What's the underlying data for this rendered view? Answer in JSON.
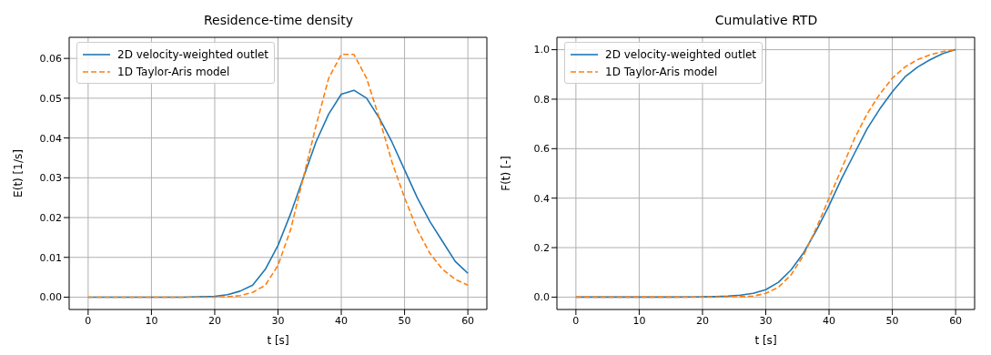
{
  "chart_data": [
    {
      "type": "line",
      "title": "Residence-time density",
      "xlabel": "t [s]",
      "ylabel": "E(t) [1/s]",
      "x": [
        0,
        5,
        10,
        15,
        20,
        22,
        24,
        26,
        28,
        30,
        32,
        34,
        36,
        38,
        40,
        42,
        44,
        46,
        48,
        50,
        52,
        54,
        56,
        58,
        60
      ],
      "series": [
        {
          "name": "2D velocity-weighted outlet",
          "color": "#1f77b4",
          "line_style": "solid",
          "values": [
            0,
            0,
            0,
            0,
            0.0002,
            0.0006,
            0.0015,
            0.003,
            0.007,
            0.013,
            0.021,
            0.03,
            0.039,
            0.046,
            0.051,
            0.052,
            0.05,
            0.045,
            0.039,
            0.032,
            0.025,
            0.019,
            0.014,
            0.009,
            0.006
          ]
        },
        {
          "name": "1D Taylor-Aris model",
          "color": "#ff7f0e",
          "line_style": "dashed",
          "values": [
            0,
            0,
            0,
            0,
            0,
            0.0001,
            0.0004,
            0.0012,
            0.003,
            0.008,
            0.017,
            0.03,
            0.043,
            0.055,
            0.061,
            0.061,
            0.055,
            0.045,
            0.034,
            0.025,
            0.017,
            0.011,
            0.007,
            0.0045,
            0.003
          ]
        }
      ],
      "xlim": [
        -3,
        63
      ],
      "xticks": [
        0,
        10,
        20,
        30,
        40,
        50,
        60
      ],
      "ylim": [
        -0.0031,
        0.0653
      ],
      "yticks": [
        {
          "value": 0,
          "label": "0.00"
        },
        {
          "value": 0.01,
          "label": "0.01"
        },
        {
          "value": 0.02,
          "label": "0.02"
        },
        {
          "value": 0.03,
          "label": "0.03"
        },
        {
          "value": 0.04,
          "label": "0.04"
        },
        {
          "value": 0.05,
          "label": "0.05"
        },
        {
          "value": 0.06,
          "label": "0.06"
        }
      ],
      "grid": true,
      "legend": "top left"
    },
    {
      "type": "line",
      "title": "Cumulative RTD",
      "xlabel": "t [s]",
      "ylabel": "F(t) [-]",
      "x": [
        0,
        5,
        10,
        15,
        20,
        22,
        24,
        26,
        28,
        30,
        32,
        34,
        36,
        38,
        40,
        42,
        44,
        46,
        48,
        50,
        52,
        54,
        56,
        58,
        60
      ],
      "series": [
        {
          "name": "2D velocity-weighted outlet",
          "color": "#1f77b4",
          "line_style": "solid",
          "values": [
            0,
            0,
            0,
            0,
            0.001,
            0.002,
            0.004,
            0.008,
            0.015,
            0.03,
            0.06,
            0.11,
            0.18,
            0.27,
            0.37,
            0.48,
            0.58,
            0.68,
            0.76,
            0.83,
            0.89,
            0.93,
            0.96,
            0.985,
            1.0
          ]
        },
        {
          "name": "1D Taylor-Aris model",
          "color": "#ff7f0e",
          "line_style": "dashed",
          "values": [
            0,
            0,
            0,
            0,
            0,
            0,
            0.001,
            0.002,
            0.004,
            0.015,
            0.04,
            0.09,
            0.17,
            0.28,
            0.4,
            0.52,
            0.64,
            0.74,
            0.82,
            0.885,
            0.93,
            0.96,
            0.98,
            0.993,
            1.0
          ]
        }
      ],
      "xlim": [
        -3,
        63
      ],
      "xticks": [
        0,
        10,
        20,
        30,
        40,
        50,
        60
      ],
      "ylim": [
        -0.05,
        1.05
      ],
      "yticks": [
        {
          "value": 0,
          "label": "0.0"
        },
        {
          "value": 0.2,
          "label": "0.2"
        },
        {
          "value": 0.4,
          "label": "0.4"
        },
        {
          "value": 0.6,
          "label": "0.6"
        },
        {
          "value": 0.8,
          "label": "0.8"
        },
        {
          "value": 1.0,
          "label": "1.0"
        }
      ],
      "grid": true,
      "legend": "top left"
    }
  ]
}
